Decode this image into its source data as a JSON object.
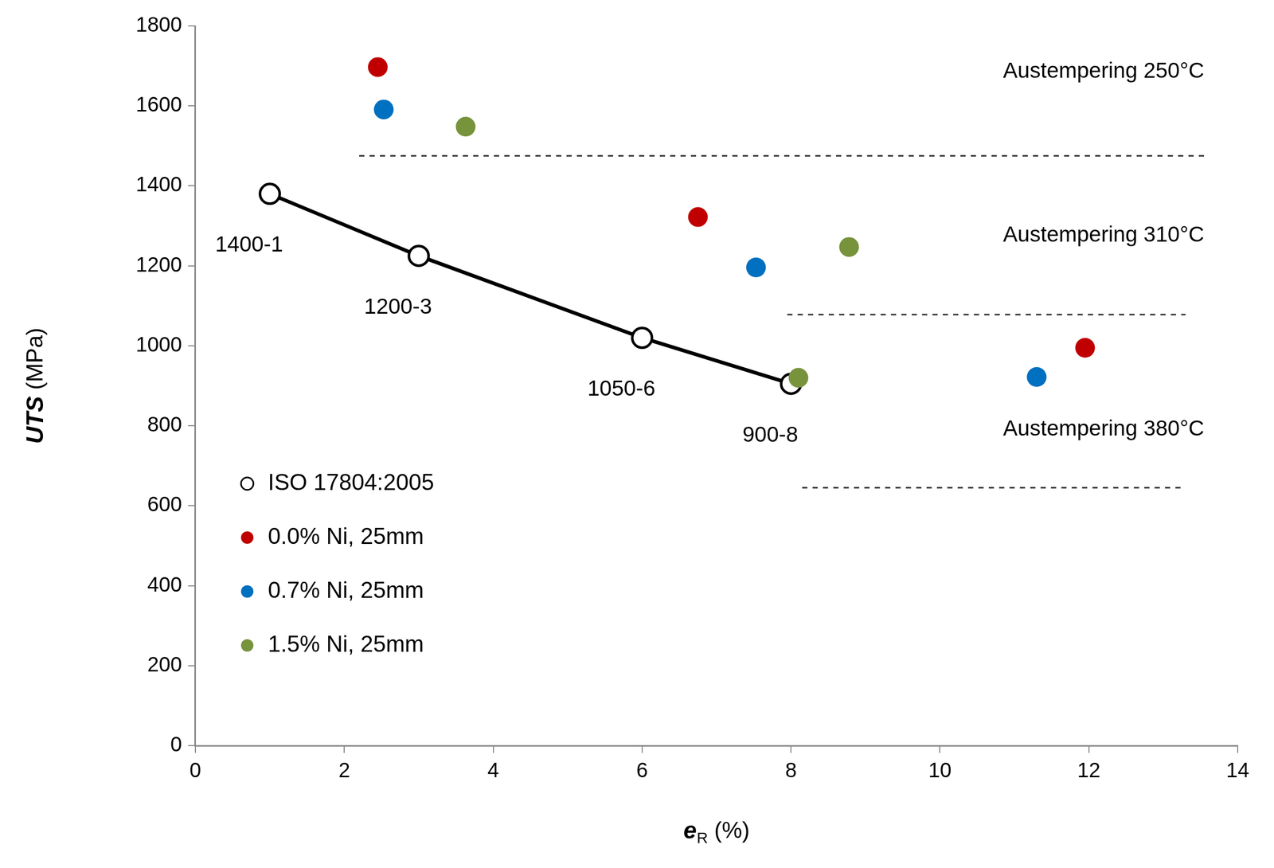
{
  "chart_data": {
    "type": "scatter",
    "xlabel": {
      "base": "e",
      "subscript": "R",
      "unit": "(%)"
    },
    "ylabel": {
      "base": "UTS",
      "unit": "(MPa)"
    },
    "xlim": [
      0,
      14
    ],
    "xticks": [
      0,
      2,
      4,
      6,
      8,
      10,
      12,
      14
    ],
    "ylim": [
      0,
      1800
    ],
    "yticks": [
      0,
      200,
      400,
      600,
      800,
      1000,
      1200,
      1400,
      1600,
      1800
    ],
    "grid": false,
    "legend": "lower left",
    "series": [
      {
        "name": "ISO 17804:2005",
        "type": "line",
        "color": "#000000",
        "marker": "circle_open",
        "line_style": "solid",
        "x": [
          1,
          3,
          6,
          8
        ],
        "values": [
          1380,
          1225,
          1020,
          905
        ],
        "labels": [
          "1400-1",
          "1200-3",
          "1050-6",
          "900-8"
        ]
      },
      {
        "name": "0.0% Ni, 25mm",
        "type": "scatter",
        "color": "#c00000",
        "marker": "circle",
        "line_style": "none",
        "x": [
          2.45,
          6.75,
          11.95
        ],
        "values": [
          1697,
          1322,
          995
        ]
      },
      {
        "name": "0.7% Ni, 25mm",
        "type": "scatter",
        "color": "#0070c0",
        "marker": "circle",
        "line_style": "none",
        "x": [
          2.53,
          7.53,
          11.3
        ],
        "values": [
          1591,
          1196,
          922
        ]
      },
      {
        "name": "1.5% Ni, 25mm",
        "type": "scatter",
        "color": "#77933c",
        "marker": "circle",
        "line_style": "none",
        "x": [
          3.63,
          8.78,
          8.1
        ],
        "values": [
          1548,
          1247,
          920
        ]
      }
    ],
    "reference_lines": [
      {
        "y": 1475,
        "x": [
          2.2,
          13.6
        ],
        "line_style": "dashed"
      },
      {
        "y": 1078,
        "x": [
          7.95,
          13.3
        ],
        "line_style": "dashed"
      },
      {
        "y": 645,
        "x": [
          8.15,
          13.3
        ],
        "line_style": "dashed"
      }
    ],
    "annotations": [
      {
        "text": "Austempering 250°C",
        "x": 13.55,
        "y": 1685
      },
      {
        "text": "Austempering 310°C",
        "x": 13.55,
        "y": 1275
      },
      {
        "text": "Austempering 380°C",
        "x": 13.55,
        "y": 790
      }
    ]
  }
}
